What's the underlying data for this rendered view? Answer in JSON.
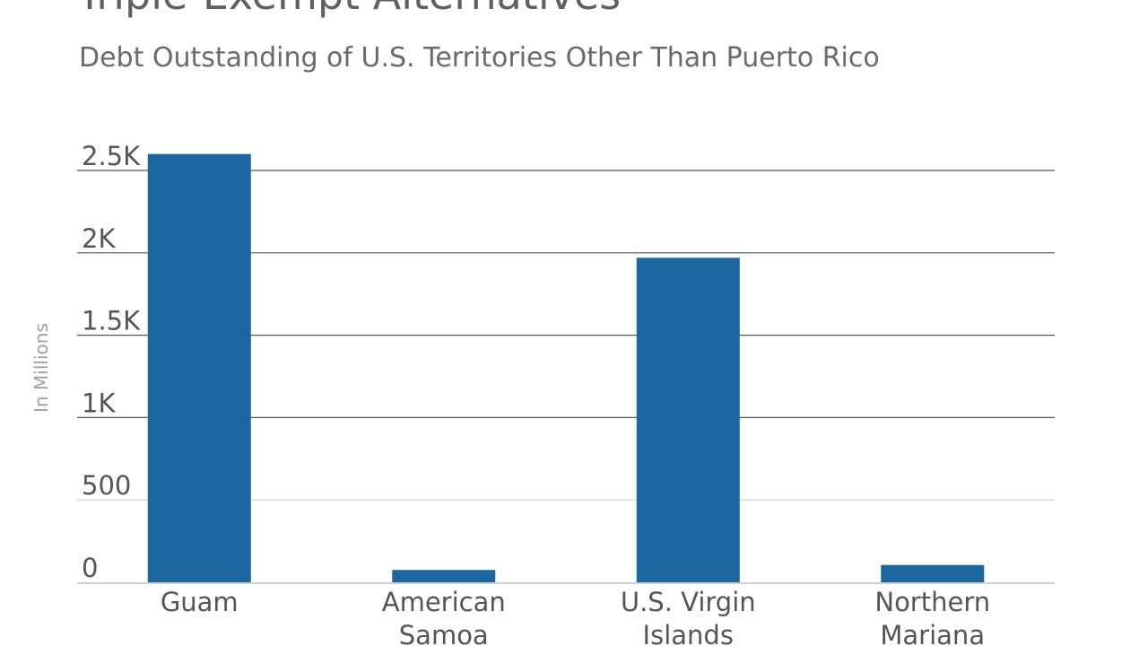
{
  "chart_data": {
    "type": "bar",
    "title": "Triple-Exempt Alternatives",
    "subtitle": "Debt Outstanding of U.S. Territories Other Than Puerto Rico",
    "ylabel": "In Millions",
    "xlabel": "",
    "categories": [
      [
        "Guam"
      ],
      [
        "American",
        "Samoa"
      ],
      [
        "U.S. Virgin",
        "Islands"
      ],
      [
        "Northern",
        "Mariana"
      ]
    ],
    "values": [
      2600,
      75,
      1970,
      105
    ],
    "ylim": [
      0,
      2500
    ],
    "yticks": [
      {
        "value": 0,
        "label": "0"
      },
      {
        "value": 500,
        "label": "500"
      },
      {
        "value": 1000,
        "label": "1K"
      },
      {
        "value": 1500,
        "label": "1.5K"
      },
      {
        "value": 2000,
        "label": "2K"
      },
      {
        "value": 2500,
        "label": "2.5K"
      }
    ],
    "grid": true,
    "colors": {
      "bar": "#1c67a0",
      "grid": "#555555",
      "grid_light": "#d0d0d0",
      "axis": "#cfcfcf"
    }
  }
}
